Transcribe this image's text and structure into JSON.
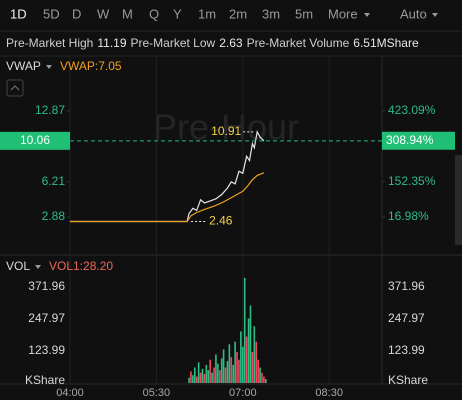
{
  "tabs": [
    "1D",
    "5D",
    "D",
    "W",
    "M",
    "Q",
    "Y",
    "1m",
    "2m",
    "3m",
    "5m",
    "More"
  ],
  "selected_tab_index": 0,
  "mode": "Auto",
  "stats": [
    {
      "label": "Pre-Market High",
      "value": "11.19"
    },
    {
      "label": "Pre-Market Low",
      "value": "2.63"
    },
    {
      "label": "Pre-Market Volume",
      "value": "6.51MShare"
    }
  ],
  "chart_data": [
    {
      "type": "line",
      "indicator": "VWAP",
      "indicator_value": "VWAP:7.05",
      "watermark": "Pre-Hour",
      "series": [
        {
          "color": "#e6e6e6",
          "x": [
            "04:00",
            "06:02",
            "06:04",
            "06:08",
            "06:12",
            "06:16",
            "06:20",
            "06:26",
            "06:32",
            "06:38",
            "06:44",
            "06:48",
            "06:52",
            "06:56",
            "07:00",
            "07:04",
            "07:07",
            "07:10",
            "07:12",
            "07:15",
            "07:18",
            "07:22"
          ],
          "values": [
            2.46,
            2.46,
            3.2,
            3.7,
            3.5,
            4.5,
            4.2,
            4.4,
            4.6,
            5.0,
            5.6,
            6.2,
            6.0,
            7.2,
            7.0,
            8.6,
            8.2,
            9.8,
            9.4,
            10.91,
            10.4,
            10.06
          ]
        },
        {
          "color": "#f0a020",
          "x": [
            "04:00",
            "06:02",
            "06:06",
            "06:12",
            "06:20",
            "06:30",
            "06:40",
            "06:50",
            "07:00",
            "07:05",
            "07:10",
            "07:15",
            "07:22"
          ],
          "values": [
            2.46,
            2.46,
            3.0,
            3.3,
            3.6,
            3.9,
            4.3,
            4.8,
            5.3,
            5.8,
            6.4,
            6.8,
            7.05
          ]
        }
      ],
      "annotations": [
        {
          "x": "07:15",
          "value": 10.91
        },
        {
          "x": "06:02",
          "value": 2.46
        }
      ],
      "last_price": 10.06,
      "last_pct": {
        "value": 308.94,
        "label": "308.94%"
      },
      "last_color": "#1fbf75",
      "ylim": [
        -0.42,
        13.91
      ],
      "yticks": [
        2.88,
        6.21,
        12.87
      ],
      "y2lim": [
        -117.06,
        465.0
      ],
      "y2ticks": [
        {
          "value": 16.98,
          "label": "16.98%"
        },
        {
          "value": 152.35,
          "label": "152.35%"
        },
        {
          "value": 423.09,
          "label": "423.09%"
        }
      ]
    },
    {
      "type": "bar",
      "indicator": "VOL",
      "indicator_value": "VOL1:28.20",
      "unit": "KShare",
      "x": [
        "06:04",
        "06:06",
        "06:08",
        "06:10",
        "06:12",
        "06:14",
        "06:16",
        "06:18",
        "06:20",
        "06:22",
        "06:24",
        "06:26",
        "06:28",
        "06:30",
        "06:32",
        "06:34",
        "06:36",
        "06:38",
        "06:40",
        "06:42",
        "06:44",
        "06:46",
        "06:48",
        "06:50",
        "06:52",
        "06:54",
        "06:56",
        "06:58",
        "07:00",
        "07:02",
        "07:04",
        "07:06",
        "07:08",
        "07:10",
        "07:12",
        "07:14",
        "07:16",
        "07:18",
        "07:20",
        "07:22",
        "07:24"
      ],
      "values": [
        20,
        45,
        30,
        60,
        25,
        80,
        40,
        55,
        35,
        70,
        50,
        90,
        40,
        60,
        110,
        75,
        50,
        95,
        130,
        60,
        85,
        150,
        100,
        70,
        160,
        120,
        90,
        200,
        140,
        407,
        180,
        250,
        300,
        120,
        220,
        160,
        90,
        60,
        40,
        25,
        15
      ],
      "colors": [
        "#2ebd85",
        "#f6465d",
        "#2ebd85",
        "#2ebd85",
        "#f6465d",
        "#2ebd85",
        "#f6465d",
        "#2ebd85",
        "#f6465d",
        "#2ebd85",
        "#2ebd85",
        "#f6465d",
        "#2ebd85",
        "#f6465d",
        "#2ebd85",
        "#2ebd85",
        "#f6465d",
        "#2ebd85",
        "#2ebd85",
        "#f6465d",
        "#2ebd85",
        "#2ebd85",
        "#f6465d",
        "#2ebd85",
        "#2ebd85",
        "#f6465d",
        "#f6465d",
        "#2ebd85",
        "#2ebd85",
        "#2ebd85",
        "#f6465d",
        "#2ebd85",
        "#2ebd85",
        "#f6465d",
        "#2ebd85",
        "#f6465d",
        "#f6465d",
        "#2ebd85",
        "#f6465d",
        "#f6465d",
        "#2ebd85"
      ],
      "ylim": [
        0,
        484
      ],
      "yticks": [
        123.99,
        247.97,
        371.96
      ],
      "xlim": [
        "04:00",
        "09:25"
      ],
      "xticks": [
        "04:00",
        "05:30",
        "07:00",
        "08:30"
      ]
    }
  ]
}
